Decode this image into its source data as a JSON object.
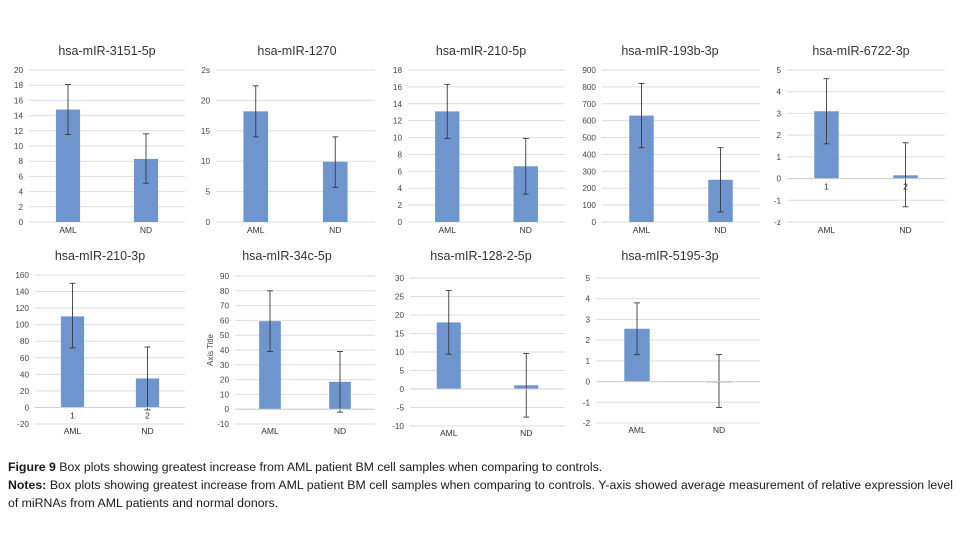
{
  "figure": {
    "caption_label": "Figure 9",
    "caption_text": "Box plots showing greatest increase from AML patient BM cell samples when comparing to controls.",
    "notes_label": "Notes:",
    "notes_text": "Box plots showing greatest increase from AML patient BM cell samples when comparing to controls. Y-axis showed average measurement of relative expression level of miRNAs from AML patients and normal donors."
  },
  "colors": {
    "bar": "#6f95cf",
    "grid": "#dedede",
    "error": "#3a3a3a",
    "zero": "#d0d0d0"
  },
  "chart_data": [
    {
      "type": "bar",
      "title": "hsa-mIR-3151-5p",
      "categories": [
        "AML",
        "ND"
      ],
      "values": [
        14.8,
        8.3
      ],
      "errors": [
        [
          11.5,
          18.1
        ],
        [
          5.1,
          11.6
        ]
      ],
      "ylim": [
        0,
        20
      ],
      "yticks": [
        "0",
        "2",
        "4",
        "6",
        "8",
        "10",
        "12",
        "14",
        "16",
        "18",
        "20"
      ],
      "xlabel": "",
      "ylabel": ""
    },
    {
      "type": "bar",
      "title": "hsa-mIR-1270",
      "categories": [
        "AML",
        "ND"
      ],
      "values": [
        18.2,
        9.9
      ],
      "errors": [
        [
          14.0,
          22.4
        ],
        [
          5.7,
          14.0
        ]
      ],
      "ylim": [
        0,
        25
      ],
      "yticks": [
        "0",
        "5",
        "10",
        "15",
        "20",
        "2s"
      ],
      "xlabel": "",
      "ylabel": ""
    },
    {
      "type": "bar",
      "title": "hsa-mIR-210-5p",
      "categories": [
        "AML",
        "ND"
      ],
      "values": [
        13.1,
        6.6
      ],
      "errors": [
        [
          9.9,
          16.3
        ],
        [
          3.3,
          9.9
        ]
      ],
      "ylim": [
        0,
        18
      ],
      "yticks": [
        "0",
        "2",
        "4",
        "6",
        "8",
        "10",
        "12",
        "14",
        "16",
        "18"
      ],
      "xlabel": "",
      "ylabel": ""
    },
    {
      "type": "bar",
      "title": "hsa-mIR-193b-3p",
      "categories": [
        "AML",
        "ND"
      ],
      "values": [
        630,
        250
      ],
      "errors": [
        [
          440,
          820
        ],
        [
          60,
          440
        ]
      ],
      "ylim": [
        0,
        900
      ],
      "yticks": [
        "0",
        "100",
        "200",
        "300",
        "400",
        "500",
        "600",
        "700",
        "800",
        "900"
      ],
      "xlabel": "",
      "ylabel": ""
    },
    {
      "type": "bar",
      "title": "hsa-mIR-6722-3p",
      "categories": [
        "AML",
        "ND"
      ],
      "values": [
        3.1,
        0.15
      ],
      "errors": [
        [
          1.6,
          4.6
        ],
        [
          -1.3,
          1.65
        ]
      ],
      "ylim": [
        -2,
        5
      ],
      "yticks": [
        "-z",
        "-1",
        "0",
        "1",
        "2",
        "3",
        "4",
        "5"
      ],
      "inner_labels": [
        "1",
        "2"
      ],
      "xlabel": "",
      "ylabel": ""
    },
    {
      "type": "bar",
      "title": "hsa-mIR-210-3p",
      "categories": [
        "AML",
        "ND"
      ],
      "values": [
        110,
        35
      ],
      "errors": [
        [
          72,
          150
        ],
        [
          -3,
          73
        ]
      ],
      "ylim": [
        -20,
        160
      ],
      "yticks": [
        "-20",
        "0",
        "20",
        "40",
        "60",
        "80",
        "100",
        "120",
        "140",
        "160"
      ],
      "inner_labels": [
        "1",
        "2"
      ],
      "xlabel": "",
      "ylabel": ""
    },
    {
      "type": "bar",
      "title": "hsa-mIR-34c-5p",
      "categories": [
        "AML",
        "ND"
      ],
      "values": [
        59.5,
        18.5
      ],
      "errors": [
        [
          39,
          80
        ],
        [
          -2,
          39
        ]
      ],
      "ylim": [
        -10,
        90
      ],
      "yticks": [
        "-10",
        "0",
        "10",
        "20",
        "30",
        "40",
        "50",
        "60",
        "70",
        "80",
        "90"
      ],
      "xlabel": "",
      "ylabel": "Axis Title"
    },
    {
      "type": "bar",
      "title": "hsa-mIR-128-2-5p",
      "categories": [
        "AML",
        "ND"
      ],
      "values": [
        18,
        1
      ],
      "errors": [
        [
          9.4,
          26.6
        ],
        [
          -7.6,
          9.6
        ]
      ],
      "ylim": [
        -10,
        30
      ],
      "yticks": [
        "-10",
        "-5",
        "0",
        "5",
        "10",
        "15",
        "20",
        "25",
        "30"
      ],
      "xlabel": "",
      "ylabel": ""
    },
    {
      "type": "bar",
      "title": "hsa-mIR-5195-3p",
      "categories": [
        "AML",
        "ND"
      ],
      "values": [
        2.55,
        0.02
      ],
      "errors": [
        [
          1.3,
          3.8
        ],
        [
          -1.25,
          1.3
        ]
      ],
      "ylim": [
        -2,
        5
      ],
      "yticks": [
        "-2",
        "-1",
        "0",
        "1",
        "2",
        "3",
        "4",
        "5"
      ],
      "xlabel": "",
      "ylabel": ""
    }
  ]
}
